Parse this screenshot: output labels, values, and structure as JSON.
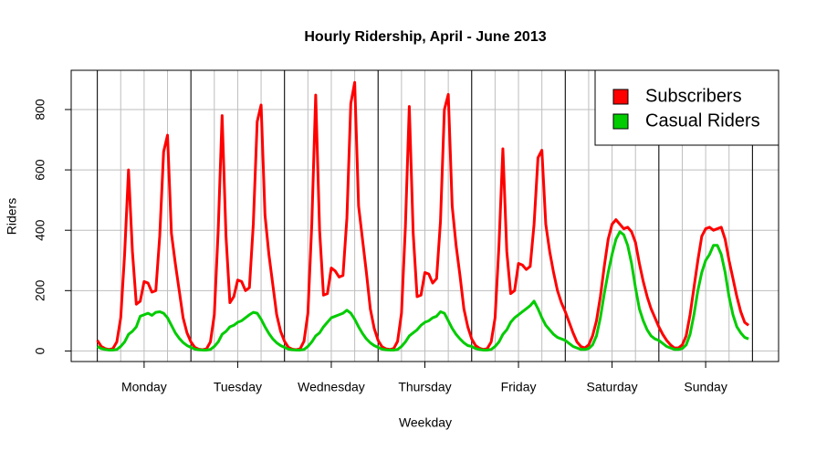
{
  "chart_data": {
    "type": "line",
    "title": "Hourly Ridership, April - June 2013",
    "x_label": "Weekday",
    "y_label": "Riders",
    "x": [
      0,
      1,
      2,
      3,
      4,
      5,
      6,
      7,
      8,
      9,
      10,
      11,
      12,
      13,
      14,
      15,
      16,
      17,
      18,
      19,
      20,
      21,
      22,
      23,
      24,
      25,
      26,
      27,
      28,
      29,
      30,
      31,
      32,
      33,
      34,
      35,
      36,
      37,
      38,
      39,
      40,
      41,
      42,
      43,
      44,
      45,
      46,
      47,
      48,
      49,
      50,
      51,
      52,
      53,
      54,
      55,
      56,
      57,
      58,
      59,
      60,
      61,
      62,
      63,
      64,
      65,
      66,
      67,
      68,
      69,
      70,
      71,
      72,
      73,
      74,
      75,
      76,
      77,
      78,
      79,
      80,
      81,
      82,
      83,
      84,
      85,
      86,
      87,
      88,
      89,
      90,
      91,
      92,
      93,
      94,
      95,
      96,
      97,
      98,
      99,
      100,
      101,
      102,
      103,
      104,
      105,
      106,
      107,
      108,
      109,
      110,
      111,
      112,
      113,
      114,
      115,
      116,
      117,
      118,
      119,
      120,
      121,
      122,
      123,
      124,
      125,
      126,
      127,
      128,
      129,
      130,
      131,
      132,
      133,
      134,
      135,
      136,
      137,
      138,
      139,
      140,
      141,
      142,
      143,
      144,
      145,
      146,
      147,
      148,
      149,
      150,
      151,
      152,
      153,
      154,
      155,
      156,
      157,
      158,
      159,
      160,
      161,
      162,
      163,
      164,
      165,
      166,
      167
    ],
    "series": [
      {
        "name": "Subscribers",
        "color": "#ff0000",
        "values": [
          35,
          15,
          8,
          5,
          8,
          30,
          110,
          320,
          600,
          330,
          155,
          165,
          230,
          225,
          195,
          200,
          380,
          660,
          715,
          390,
          290,
          200,
          110,
          60,
          30,
          12,
          6,
          4,
          7,
          30,
          120,
          400,
          780,
          380,
          160,
          180,
          235,
          230,
          200,
          210,
          420,
          760,
          815,
          450,
          320,
          220,
          120,
          65,
          32,
          12,
          6,
          4,
          7,
          32,
          125,
          420,
          848,
          400,
          185,
          190,
          275,
          265,
          245,
          250,
          440,
          820,
          890,
          480,
          370,
          260,
          140,
          75,
          35,
          14,
          7,
          5,
          8,
          32,
          125,
          410,
          810,
          390,
          180,
          185,
          260,
          255,
          225,
          240,
          430,
          800,
          850,
          480,
          350,
          250,
          140,
          80,
          40,
          18,
          9,
          5,
          8,
          30,
          110,
          350,
          670,
          330,
          190,
          200,
          290,
          285,
          270,
          280,
          420,
          640,
          665,
          420,
          330,
          260,
          200,
          160,
          130,
          95,
          60,
          30,
          15,
          10,
          20,
          50,
          100,
          180,
          280,
          370,
          420,
          435,
          420,
          405,
          410,
          395,
          360,
          290,
          230,
          180,
          140,
          110,
          80,
          55,
          35,
          20,
          10,
          10,
          20,
          50,
          120,
          210,
          300,
          380,
          405,
          410,
          400,
          405,
          410,
          370,
          300,
          240,
          180,
          130,
          95,
          85
        ]
      },
      {
        "name": "Casual Riders",
        "color": "#00cc00",
        "values": [
          15,
          8,
          5,
          3,
          3,
          5,
          15,
          30,
          55,
          65,
          80,
          115,
          120,
          125,
          118,
          128,
          130,
          125,
          110,
          85,
          60,
          42,
          28,
          18,
          12,
          6,
          4,
          3,
          3,
          5,
          15,
          30,
          55,
          65,
          80,
          85,
          95,
          100,
          110,
          120,
          128,
          125,
          105,
          80,
          58,
          40,
          27,
          18,
          12,
          6,
          4,
          3,
          3,
          5,
          15,
          30,
          50,
          60,
          80,
          95,
          110,
          115,
          120,
          125,
          135,
          125,
          105,
          80,
          58,
          40,
          27,
          18,
          12,
          6,
          4,
          3,
          3,
          5,
          15,
          30,
          50,
          60,
          70,
          85,
          95,
          100,
          110,
          115,
          130,
          125,
          100,
          75,
          55,
          40,
          27,
          18,
          15,
          8,
          5,
          3,
          3,
          5,
          15,
          30,
          55,
          70,
          95,
          110,
          120,
          130,
          140,
          150,
          165,
          140,
          110,
          85,
          70,
          55,
          45,
          40,
          35,
          25,
          15,
          10,
          5,
          5,
          8,
          20,
          50,
          110,
          190,
          260,
          320,
          370,
          395,
          385,
          350,
          290,
          210,
          140,
          100,
          70,
          50,
          40,
          35,
          25,
          15,
          10,
          5,
          5,
          8,
          20,
          55,
          120,
          200,
          260,
          300,
          320,
          350,
          350,
          320,
          260,
          180,
          120,
          80,
          60,
          45,
          40
        ]
      }
    ],
    "xlim": [
      -6.7,
      174.7
    ],
    "xticks": [
      {
        "value": 12,
        "label": "Monday"
      },
      {
        "value": 36,
        "label": "Tuesday"
      },
      {
        "value": 60,
        "label": "Wednesday"
      },
      {
        "value": 84,
        "label": "Thursday"
      },
      {
        "value": 108,
        "label": "Friday"
      },
      {
        "value": 132,
        "label": "Saturday"
      },
      {
        "value": 156,
        "label": "Sunday"
      }
    ],
    "xgrid": [
      0,
      6,
      12,
      18,
      24,
      30,
      36,
      42,
      48,
      54,
      60,
      66,
      72,
      78,
      84,
      90,
      96,
      102,
      108,
      114,
      120,
      126,
      132,
      138,
      144,
      150,
      156,
      162,
      168
    ],
    "day_boundaries": [
      0,
      24,
      48,
      72,
      96,
      120,
      144,
      168
    ],
    "ylim": [
      -35,
      930
    ],
    "yticks": [
      0,
      200,
      400,
      600,
      800
    ],
    "grid": true,
    "legend": "top-right"
  }
}
